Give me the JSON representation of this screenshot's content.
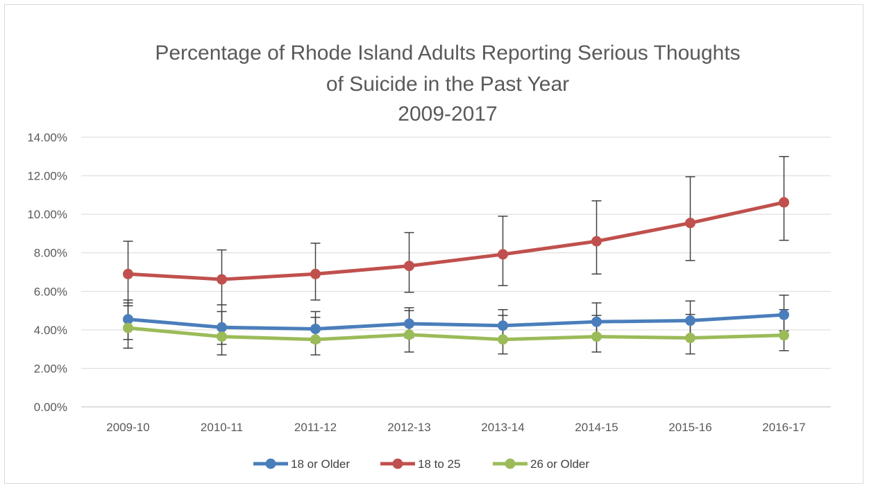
{
  "chart_data": {
    "type": "line",
    "title_lines": [
      "Percentage of Rhode Island Adults Reporting Serious Thoughts",
      "of Suicide in the Past Year",
      "2009-2017"
    ],
    "xlabel": "",
    "ylabel": "",
    "categories": [
      "2009-10",
      "2010-11",
      "2011-12",
      "2012-13",
      "2013-14",
      "2014-15",
      "2015-16",
      "2016-17"
    ],
    "ylim": [
      0,
      14
    ],
    "y_ticks": [
      0,
      2,
      4,
      6,
      8,
      10,
      12,
      14
    ],
    "y_tick_labels": [
      "0.00%",
      "2.00%",
      "4.00%",
      "6.00%",
      "8.00%",
      "10.00%",
      "12.00%",
      "14.00%"
    ],
    "grid": true,
    "legend_position": "bottom",
    "series": [
      {
        "name": "18 or Older",
        "color": "#4a7ebb",
        "values": [
          4.55,
          4.13,
          4.05,
          4.32,
          4.22,
          4.42,
          4.48,
          4.78
        ],
        "error_low": [
          3.5,
          3.25,
          3.35,
          3.6,
          3.5,
          3.65,
          3.65,
          3.95
        ],
        "error_high": [
          5.55,
          5.3,
          4.95,
          5.15,
          5.05,
          5.4,
          5.5,
          5.8
        ]
      },
      {
        "name": "18 to 25",
        "color": "#c0504d",
        "values": [
          6.9,
          6.62,
          6.9,
          7.32,
          7.92,
          8.6,
          9.55,
          10.62
        ],
        "error_low": [
          5.25,
          5.3,
          5.55,
          5.95,
          6.3,
          6.9,
          7.6,
          8.65
        ],
        "error_high": [
          8.6,
          8.15,
          8.5,
          9.05,
          9.9,
          10.7,
          11.95,
          13.0
        ]
      },
      {
        "name": "26 or Older",
        "color": "#9bbb59",
        "values": [
          4.1,
          3.65,
          3.5,
          3.75,
          3.5,
          3.65,
          3.58,
          3.72
        ],
        "error_low": [
          3.05,
          2.7,
          2.7,
          2.85,
          2.75,
          2.85,
          2.75,
          2.92
        ],
        "error_high": [
          5.4,
          4.95,
          4.65,
          5.0,
          4.75,
          4.75,
          4.8,
          5.05
        ]
      }
    ]
  }
}
